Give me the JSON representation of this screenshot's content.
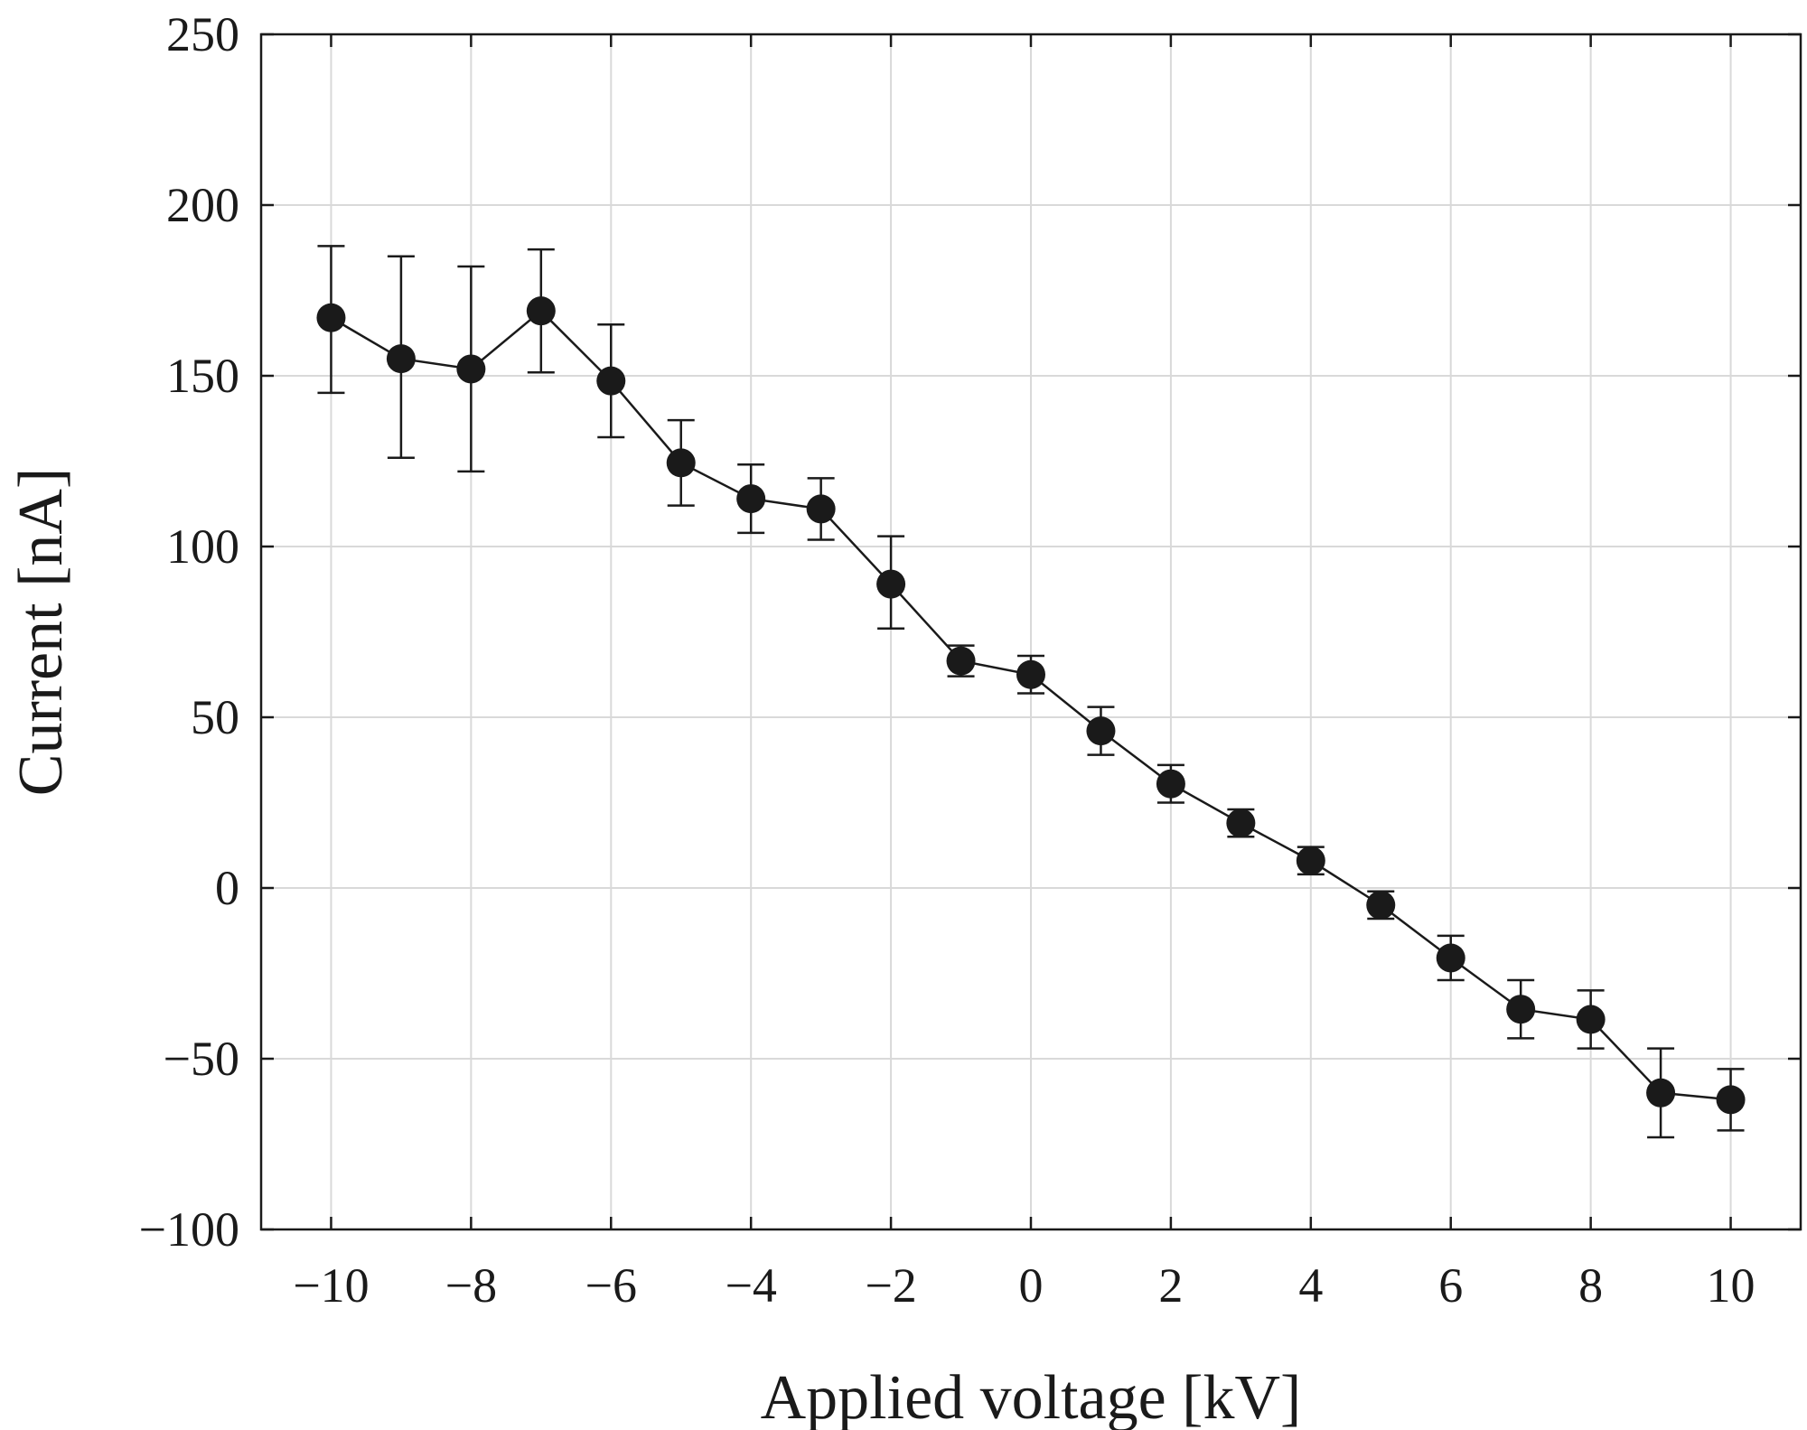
{
  "chart_data": {
    "type": "line",
    "xlabel": "Applied voltage [kV]",
    "ylabel": "Current [nA]",
    "xlim": [
      -11,
      11
    ],
    "ylim": [
      -100,
      250
    ],
    "xticks": [
      -10,
      -8,
      -6,
      -4,
      -2,
      0,
      2,
      4,
      6,
      8,
      10
    ],
    "xtick_labels": [
      "−10",
      "−8",
      "−6",
      "−4",
      "−2",
      "0",
      "2",
      "4",
      "6",
      "8",
      "10"
    ],
    "yticks": [
      -100,
      -50,
      0,
      50,
      100,
      150,
      200,
      250
    ],
    "ytick_labels": [
      "−100",
      "−50",
      "0",
      "50",
      "100",
      "150",
      "200",
      "250"
    ],
    "grid": true,
    "series": [
      {
        "marker": "filled-circle",
        "color": "#1a1a1a",
        "x": [
          -10,
          -9,
          -8,
          -7,
          -6,
          -5,
          -4,
          -3,
          -2,
          -1,
          0,
          1,
          2,
          3,
          4,
          5,
          6,
          7,
          8,
          9,
          10
        ],
        "y": [
          167,
          155,
          152,
          169,
          148.5,
          124.5,
          114,
          111,
          89,
          66.5,
          62.5,
          46,
          30.5,
          19,
          8,
          -5,
          -20.5,
          -35.5,
          -38.5,
          -60,
          -62
        ],
        "y_upper": [
          188,
          185,
          182,
          187,
          165,
          137,
          124,
          120,
          103,
          71,
          68,
          53,
          36,
          23,
          12,
          -1,
          -14,
          -27,
          -30,
          -47,
          -53
        ],
        "y_lower": [
          145,
          126,
          122,
          151,
          132,
          112,
          104,
          102,
          76,
          62,
          57,
          39,
          25,
          15,
          4,
          -9,
          -27,
          -44,
          -47,
          -73,
          -71
        ]
      }
    ]
  }
}
